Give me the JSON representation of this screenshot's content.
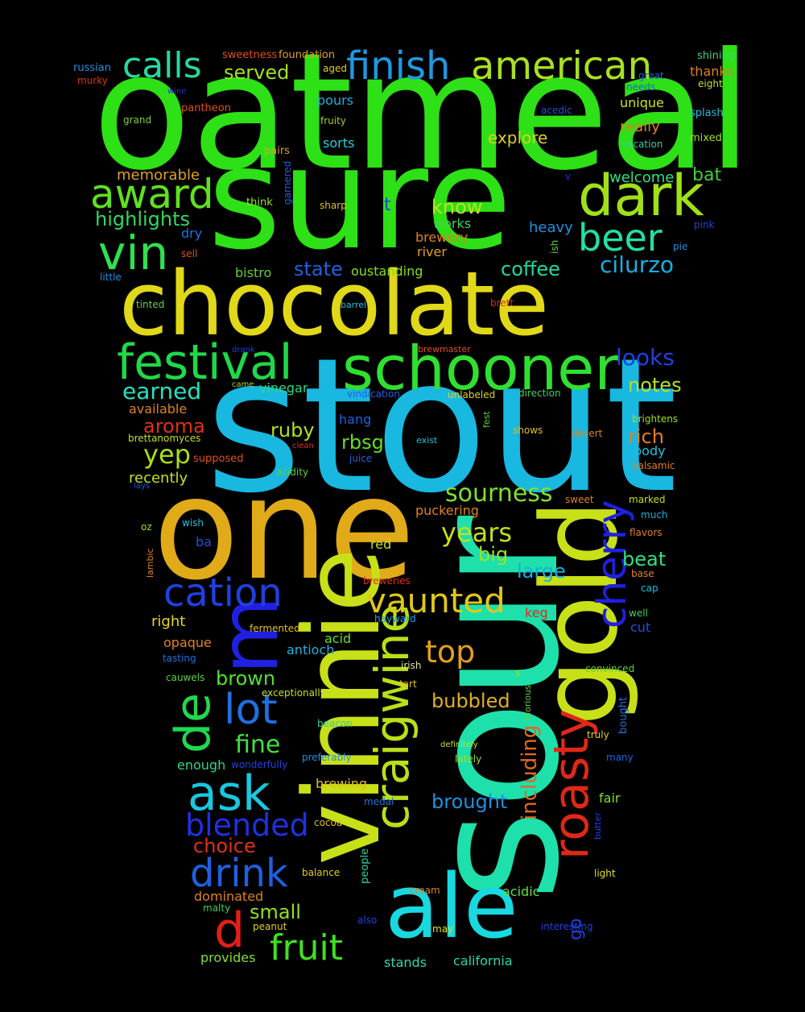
{
  "background": "#000000",
  "words": [
    {
      "text": "oatmeal",
      "color": "#2ee016"
    },
    {
      "text": "sure",
      "color": "#2ee016"
    },
    {
      "text": "stout",
      "color": "#18b8e0"
    },
    {
      "text": "one",
      "color": "#e0aa18"
    },
    {
      "text": "sour",
      "color": "#1ee0aa"
    },
    {
      "text": "chocolate",
      "color": "#e0d818"
    },
    {
      "text": "vinnie",
      "color": "#c8e018"
    },
    {
      "text": "gold",
      "color": "#c8e018"
    },
    {
      "text": "ale",
      "color": "#18d8e0"
    },
    {
      "text": "m",
      "color": "#2020e0"
    },
    {
      "text": "schooner",
      "color": "#30e030"
    },
    {
      "text": "festival",
      "color": "#20d848"
    },
    {
      "text": "dark",
      "color": "#a0e018"
    },
    {
      "text": "american",
      "color": "#a8e020"
    },
    {
      "text": "finish",
      "color": "#2098e0"
    },
    {
      "text": "calls",
      "color": "#28d8a0"
    },
    {
      "text": "award",
      "color": "#60e020"
    },
    {
      "text": "vin",
      "color": "#30e050"
    },
    {
      "text": "beer",
      "color": "#20e0a8"
    },
    {
      "text": "craigwine",
      "color": "#b8e018"
    },
    {
      "text": "roasty",
      "color": "#e02818"
    },
    {
      "text": "cherry",
      "color": "#2020e0"
    },
    {
      "text": "vaunted",
      "color": "#e0c818"
    },
    {
      "text": "cation",
      "color": "#2040e0"
    },
    {
      "text": "de",
      "color": "#20d850"
    },
    {
      "text": "lot",
      "color": "#2070e0"
    },
    {
      "text": "ask",
      "color": "#18c8e0"
    },
    {
      "text": "drink",
      "color": "#2060e0"
    },
    {
      "text": "blended",
      "color": "#2030e0"
    },
    {
      "text": "d",
      "color": "#e02018"
    },
    {
      "text": "fruit",
      "color": "#40e020"
    },
    {
      "text": "top",
      "color": "#e0a020"
    },
    {
      "text": "sourness",
      "color": "#80e030"
    },
    {
      "text": "years",
      "color": "#c0e020"
    },
    {
      "text": "including",
      "color": "#e06820"
    },
    {
      "text": "go",
      "color": "#2040e0"
    },
    {
      "text": "fine",
      "color": "#40e040"
    },
    {
      "text": "yep",
      "color": "#a8e018"
    },
    {
      "text": "cilurzo",
      "color": "#18b0e0"
    },
    {
      "text": "looks",
      "color": "#2040e0"
    },
    {
      "text": "earned",
      "color": "#28e0c0"
    },
    {
      "text": "highlights",
      "color": "#30d860"
    },
    {
      "text": "coffee",
      "color": "#20d8a0"
    },
    {
      "text": "notes",
      "color": "#b8e020"
    },
    {
      "text": "rich",
      "color": "#e08020"
    },
    {
      "text": "know",
      "color": "#c0e020"
    },
    {
      "text": "state",
      "color": "#2060e0"
    },
    {
      "text": "served",
      "color": "#a0e020"
    },
    {
      "text": "beat",
      "color": "#30e080"
    },
    {
      "text": "large",
      "color": "#18b0e0"
    },
    {
      "text": "big",
      "color": "#a0e020"
    },
    {
      "text": "rbsg",
      "color": "#60e020"
    },
    {
      "text": "ruby",
      "color": "#b0e020"
    },
    {
      "text": "aroma",
      "color": "#e03018"
    },
    {
      "text": "brown",
      "color": "#50e030"
    },
    {
      "text": "small",
      "color": "#90e020"
    },
    {
      "text": "brought",
      "color": "#2090e0"
    },
    {
      "text": "bubbled",
      "color": "#e0b020"
    },
    {
      "text": "choice",
      "color": "#e03018"
    },
    {
      "text": "explore",
      "color": "#e0d020"
    },
    {
      "text": "bat",
      "color": "#40d040"
    },
    {
      "text": "welcome",
      "color": "#30e080"
    },
    {
      "text": "memorable",
      "color": "#e0a020"
    },
    {
      "text": "heavy",
      "color": "#2090e0"
    },
    {
      "text": "really",
      "color": "#e08020"
    },
    {
      "text": "unique",
      "color": "#d0e020"
    },
    {
      "text": "pours",
      "color": "#20b0e0"
    },
    {
      "text": "sorts",
      "color": "#20d0e0"
    },
    {
      "text": "t",
      "color": "#2040e0"
    },
    {
      "text": "works",
      "color": "#40d060"
    },
    {
      "text": "brewery",
      "color": "#e08020"
    },
    {
      "text": "river",
      "color": "#e0a020"
    },
    {
      "text": "bistro",
      "color": "#60d030"
    },
    {
      "text": "oustanding",
      "color": "#80e020"
    },
    {
      "text": "dry",
      "color": "#2070e0"
    },
    {
      "text": "thanks",
      "color": "#e08020"
    },
    {
      "text": "recently",
      "color": "#c0e020"
    },
    {
      "text": "available",
      "color": "#e08020"
    },
    {
      "text": "vinegar",
      "color": "#30d880"
    },
    {
      "text": "hang",
      "color": "#2060e0"
    },
    {
      "text": "body",
      "color": "#20c0e0"
    },
    {
      "text": "puckering",
      "color": "#e08020"
    },
    {
      "text": "red",
      "color": "#c0e020"
    },
    {
      "text": "keg",
      "color": "#e02818"
    },
    {
      "text": "right",
      "color": "#e0d820"
    },
    {
      "text": "opaque",
      "color": "#e08020"
    },
    {
      "text": "antioch",
      "color": "#20b0e0"
    },
    {
      "text": "acid",
      "color": "#60e030"
    },
    {
      "text": "cut",
      "color": "#2050e0"
    },
    {
      "text": "enough",
      "color": "#30d880"
    },
    {
      "text": "brewing",
      "color": "#e0c020"
    },
    {
      "text": "fair",
      "color": "#80e020"
    },
    {
      "text": "acidic",
      "color": "#60e040"
    },
    {
      "text": "dominated",
      "color": "#e08020"
    },
    {
      "text": "stands",
      "color": "#30d8b0"
    },
    {
      "text": "california",
      "color": "#28d8b0"
    },
    {
      "text": "provides",
      "color": "#80e030"
    },
    {
      "text": "shining",
      "color": "#40d080"
    },
    {
      "text": "foundation",
      "color": "#e0a020"
    },
    {
      "text": "sweetness",
      "color": "#e05018"
    },
    {
      "text": "russian",
      "color": "#2090e0"
    },
    {
      "text": "murky",
      "color": "#e03018"
    },
    {
      "text": "aged",
      "color": "#e0d020"
    },
    {
      "text": "great",
      "color": "#2060e0"
    },
    {
      "text": "eight",
      "color": "#c0e020"
    },
    {
      "text": "needs",
      "color": "#2060e0"
    },
    {
      "text": "wine",
      "color": "#2030e0"
    },
    {
      "text": "pantheon",
      "color": "#e05018"
    },
    {
      "text": "grand",
      "color": "#80d030"
    },
    {
      "text": "fruity",
      "color": "#a0d030"
    },
    {
      "text": "acedic",
      "color": "#2050e0"
    },
    {
      "text": "splash",
      "color": "#20c0e0"
    },
    {
      "text": "mixed",
      "color": "#a0e020"
    },
    {
      "text": "vacation",
      "color": "#30d0a0"
    },
    {
      "text": "pairs",
      "color": "#e0a020"
    },
    {
      "text": "garnered",
      "color": "#2060e0"
    },
    {
      "text": "v",
      "color": "#2030e0"
    },
    {
      "text": "think",
      "color": "#a0e020"
    },
    {
      "text": "sharp",
      "color": "#e0c020"
    },
    {
      "text": "pink",
      "color": "#2040e0"
    },
    {
      "text": "ish",
      "color": "#60d040"
    },
    {
      "text": "pie",
      "color": "#2090e0"
    },
    {
      "text": "sell",
      "color": "#e05018"
    },
    {
      "text": "little",
      "color": "#2090e0"
    },
    {
      "text": "tinted",
      "color": "#60d040"
    },
    {
      "text": "barrel",
      "color": "#20c0e0"
    },
    {
      "text": "brett",
      "color": "#e03018"
    },
    {
      "text": "drank",
      "color": "#2040e0"
    },
    {
      "text": "brewmaster",
      "color": "#e05018"
    },
    {
      "text": "came",
      "color": "#a0e020"
    },
    {
      "text": "vindication",
      "color": "#2060e0"
    },
    {
      "text": "unlabeled",
      "color": "#e0d020"
    },
    {
      "text": "direction",
      "color": "#40d060"
    },
    {
      "text": "brightens",
      "color": "#a0e020"
    },
    {
      "text": "brettanomyces",
      "color": "#c0e020"
    },
    {
      "text": "clean",
      "color": "#e03018"
    },
    {
      "text": "exist",
      "color": "#20c0e0"
    },
    {
      "text": "fest",
      "color": "#60d040"
    },
    {
      "text": "shows",
      "color": "#e0c020"
    },
    {
      "text": "desert",
      "color": "#e08020"
    },
    {
      "text": "supposed",
      "color": "#e05018"
    },
    {
      "text": "juice",
      "color": "#2060e0"
    },
    {
      "text": "acidity",
      "color": "#60d040"
    },
    {
      "text": "balsamic",
      "color": "#e08020"
    },
    {
      "text": "lays",
      "color": "#2050e0"
    },
    {
      "text": "marked",
      "color": "#c0e020"
    },
    {
      "text": "sweet",
      "color": "#e08020"
    },
    {
      "text": "much",
      "color": "#20b0e0"
    },
    {
      "text": "oz",
      "color": "#a0e020"
    },
    {
      "text": "wish",
      "color": "#20c0e0"
    },
    {
      "text": "flavors",
      "color": "#e08020"
    },
    {
      "text": "lambic",
      "color": "#e08020"
    },
    {
      "text": "ba",
      "color": "#2050e0"
    },
    {
      "text": "base",
      "color": "#e08020"
    },
    {
      "text": "breweries",
      "color": "#e03018"
    },
    {
      "text": "cap",
      "color": "#20c0e0"
    },
    {
      "text": "hayward",
      "color": "#20a0e0"
    },
    {
      "text": "well",
      "color": "#40d060"
    },
    {
      "text": "fermented",
      "color": "#e0c020"
    },
    {
      "text": "tasting",
      "color": "#2070e0"
    },
    {
      "text": "irish",
      "color": "#e0e0a0"
    },
    {
      "text": "s",
      "color": "#a0e020"
    },
    {
      "text": "convinced",
      "color": "#60d040"
    },
    {
      "text": "cauwels",
      "color": "#60d040"
    },
    {
      "text": "tart",
      "color": "#e0c020"
    },
    {
      "text": "exceptionally",
      "color": "#c0e020"
    },
    {
      "text": "glorious",
      "color": "#60d040"
    },
    {
      "text": "beacon",
      "color": "#30d0a0"
    },
    {
      "text": "definitely",
      "color": "#c0e020"
    },
    {
      "text": "truly",
      "color": "#e0d020"
    },
    {
      "text": "bought",
      "color": "#2070e0"
    },
    {
      "text": "wonderfully",
      "color": "#2040e0"
    },
    {
      "text": "preferably",
      "color": "#2090e0"
    },
    {
      "text": "lately",
      "color": "#a0e020"
    },
    {
      "text": "many",
      "color": "#2060e0"
    },
    {
      "text": "medal",
      "color": "#2070e0"
    },
    {
      "text": "cocoa",
      "color": "#e0c020"
    },
    {
      "text": "butter",
      "color": "#2040e0"
    },
    {
      "text": "balance",
      "color": "#e0d020"
    },
    {
      "text": "people",
      "color": "#30d0a0"
    },
    {
      "text": "light",
      "color": "#e0e020"
    },
    {
      "text": "malty",
      "color": "#40d060"
    },
    {
      "text": "cream",
      "color": "#e08020"
    },
    {
      "text": "peanut",
      "color": "#e0d020"
    },
    {
      "text": "also",
      "color": "#2040e0"
    },
    {
      "text": "may",
      "color": "#e0e020"
    },
    {
      "text": "interesting",
      "color": "#2040e0"
    }
  ]
}
